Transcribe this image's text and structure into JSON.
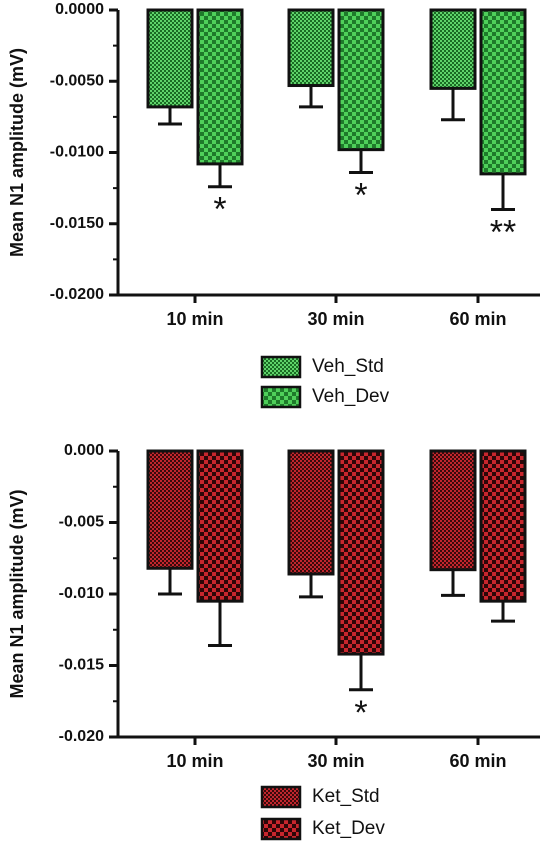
{
  "chart_data": [
    {
      "type": "bar",
      "categories": [
        "10 min",
        "30 min",
        "60 min"
      ],
      "ylabel": "Mean N1 amplitude (mV)",
      "ylim": [
        -0.02,
        0
      ],
      "yticks": [
        0,
        -0.005,
        -0.01,
        -0.015,
        -0.02
      ],
      "ytick_labels": [
        "0.0000",
        "-0.0050",
        "-0.0100",
        "-0.0150",
        "-0.0200"
      ],
      "series": [
        {
          "name": "Veh_Std",
          "values": [
            -0.0068,
            -0.0053,
            -0.0055
          ],
          "err": [
            0.0012,
            0.0015,
            0.0022
          ],
          "color": "#3fb54a",
          "fine": true
        },
        {
          "name": "Veh_Dev",
          "values": [
            -0.0108,
            -0.0098,
            -0.0115
          ],
          "err": [
            0.0016,
            0.0016,
            0.0025
          ],
          "color": "#3fb54a",
          "fine": false
        }
      ],
      "annotations": [
        "*",
        "*",
        "**"
      ],
      "legend_position": "bottom"
    },
    {
      "type": "bar",
      "categories": [
        "10 min",
        "30 min",
        "60 min"
      ],
      "ylabel": "Mean N1 amplitude (mV)",
      "ylim": [
        -0.02,
        0
      ],
      "yticks": [
        0,
        -0.005,
        -0.01,
        -0.015,
        -0.02
      ],
      "ytick_labels": [
        "0.000",
        "-0.005",
        "-0.010",
        "-0.015",
        "-0.020"
      ],
      "series": [
        {
          "name": "Ket_Std",
          "values": [
            -0.0082,
            -0.0086,
            -0.0083
          ],
          "err": [
            0.0018,
            0.0016,
            0.0018
          ],
          "color": "#b01e24",
          "fine": true
        },
        {
          "name": "Ket_Dev",
          "values": [
            -0.0105,
            -0.0142,
            -0.0105
          ],
          "err": [
            0.0031,
            0.0025,
            0.0014
          ],
          "color": "#b01e24",
          "fine": false
        }
      ],
      "annotations": [
        "",
        "*",
        ""
      ],
      "legend_position": "bottom"
    }
  ]
}
